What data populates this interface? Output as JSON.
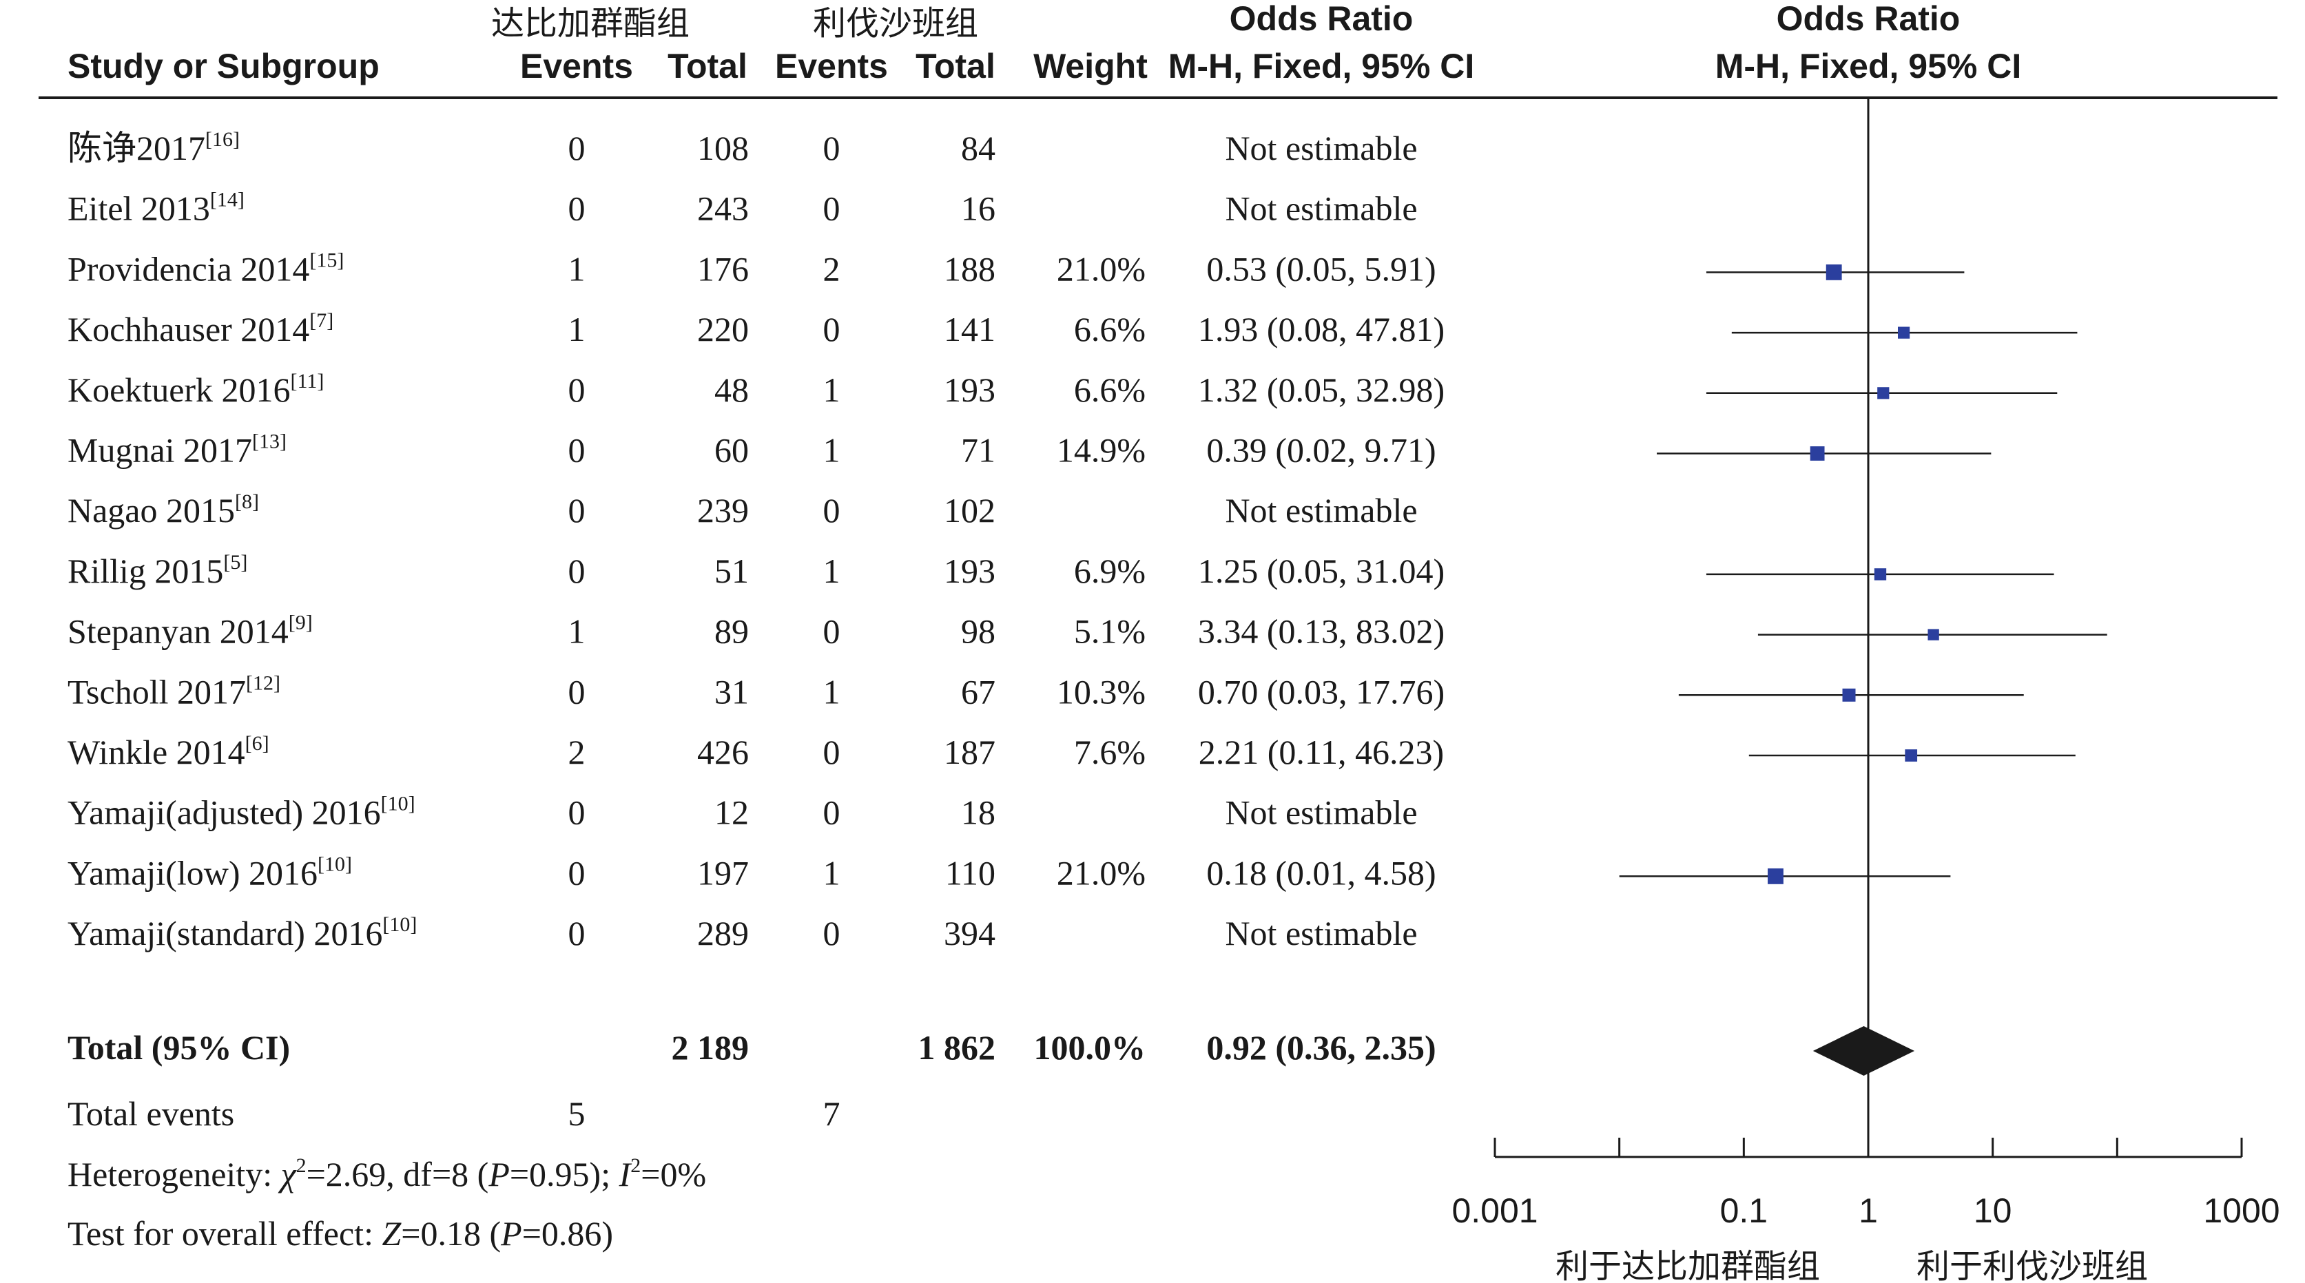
{
  "header": {
    "group1_name": "达比加群酯组",
    "group2_name": "利伐沙班组",
    "study_col": "Study or Subgroup",
    "events": "Events",
    "total": "Total",
    "weight": "Weight",
    "or_title": "Odds Ratio",
    "or_method": "M-H, Fixed, 95% CI",
    "plot_title": "Odds Ratio",
    "plot_method": "M-H, Fixed, 95% CI"
  },
  "chart_data": {
    "type": "forest",
    "x_scale": "log",
    "xlim": [
      0.001,
      1000
    ],
    "x_ticks": [
      "0.001",
      "0.1",
      "1",
      "10",
      "1000"
    ],
    "x_tick_values": [
      0.001,
      0.1,
      1,
      10,
      1000
    ],
    "favors_left": "利于达比加群酯组",
    "favors_right": "利于利伐沙班组",
    "studies": [
      {
        "name": "陈诤2017",
        "ref": "[16]",
        "events1": "0",
        "total1": "108",
        "events2": "0",
        "total2": "84",
        "weight": "",
        "or_text": "Not estimable",
        "or": null,
        "lo": null,
        "hi": null
      },
      {
        "name": "Eitel 2013",
        "ref": "[14]",
        "events1": "0",
        "total1": "243",
        "events2": "0",
        "total2": "16",
        "weight": "",
        "or_text": "Not estimable",
        "or": null,
        "lo": null,
        "hi": null
      },
      {
        "name": "Providencia 2014",
        "ref": "[15]",
        "events1": "1",
        "total1": "176",
        "events2": "2",
        "total2": "188",
        "weight": "21.0%",
        "or_text": "0.53 (0.05, 5.91)",
        "or": 0.53,
        "lo": 0.05,
        "hi": 5.91
      },
      {
        "name": "Kochhauser 2014",
        "ref": "[7]",
        "events1": "1",
        "total1": "220",
        "events2": "0",
        "total2": "141",
        "weight": "6.6%",
        "or_text": "1.93 (0.08, 47.81)",
        "or": 1.93,
        "lo": 0.08,
        "hi": 47.81
      },
      {
        "name": "Koektuerk 2016",
        "ref": "[11]",
        "events1": "0",
        "total1": "48",
        "events2": "1",
        "total2": "193",
        "weight": "6.6%",
        "or_text": "1.32 (0.05, 32.98)",
        "or": 1.32,
        "lo": 0.05,
        "hi": 32.98
      },
      {
        "name": "Mugnai 2017",
        "ref": "[13]",
        "events1": "0",
        "total1": "60",
        "events2": "1",
        "total2": "71",
        "weight": "14.9%",
        "or_text": "0.39 (0.02, 9.71)",
        "or": 0.39,
        "lo": 0.02,
        "hi": 9.71
      },
      {
        "name": "Nagao 2015",
        "ref": "[8]",
        "events1": "0",
        "total1": "239",
        "events2": "0",
        "total2": "102",
        "weight": "",
        "or_text": "Not estimable",
        "or": null,
        "lo": null,
        "hi": null
      },
      {
        "name": "Rillig 2015",
        "ref": "[5]",
        "events1": "0",
        "total1": "51",
        "events2": "1",
        "total2": "193",
        "weight": "6.9%",
        "or_text": "1.25 (0.05, 31.04)",
        "or": 1.25,
        "lo": 0.05,
        "hi": 31.04
      },
      {
        "name": "Stepanyan 2014",
        "ref": "[9]",
        "events1": "1",
        "total1": "89",
        "events2": "0",
        "total2": "98",
        "weight": "5.1%",
        "or_text": "3.34 (0.13, 83.02)",
        "or": 3.34,
        "lo": 0.13,
        "hi": 83.02
      },
      {
        "name": "Tscholl 2017",
        "ref": "[12]",
        "events1": "0",
        "total1": "31",
        "events2": "1",
        "total2": "67",
        "weight": "10.3%",
        "or_text": "0.70 (0.03, 17.76)",
        "or": 0.7,
        "lo": 0.03,
        "hi": 17.76
      },
      {
        "name": "Winkle 2014",
        "ref": "[6]",
        "events1": "2",
        "total1": "426",
        "events2": "0",
        "total2": "187",
        "weight": "7.6%",
        "or_text": "2.21 (0.11, 46.23)",
        "or": 2.21,
        "lo": 0.11,
        "hi": 46.23
      },
      {
        "name": "Yamaji(adjusted) 2016",
        "ref": "[10]",
        "events1": "0",
        "total1": "12",
        "events2": "0",
        "total2": "18",
        "weight": "",
        "or_text": "Not estimable",
        "or": null,
        "lo": null,
        "hi": null
      },
      {
        "name": "Yamaji(low) 2016",
        "ref": "[10]",
        "events1": "0",
        "total1": "197",
        "events2": "1",
        "total2": "110",
        "weight": "21.0%",
        "or_text": "0.18 (0.01, 4.58)",
        "or": 0.18,
        "lo": 0.01,
        "hi": 4.58
      },
      {
        "name": "Yamaji(standard) 2016",
        "ref": "[10]",
        "events1": "0",
        "total1": "289",
        "events2": "0",
        "total2": "394",
        "weight": "",
        "or_text": "Not estimable",
        "or": null,
        "lo": null,
        "hi": null
      }
    ],
    "total": {
      "label": "Total (95% CI)",
      "total1": "2 189",
      "total2": "1 862",
      "weight": "100.0%",
      "or_text": "0.92 (0.36, 2.35)",
      "or": 0.92,
      "lo": 0.36,
      "hi": 2.35
    },
    "total_events": {
      "label": "Total events",
      "events1": "5",
      "events2": "7"
    },
    "heterogeneity": {
      "prefix": "Heterogeneity: ",
      "chi_symbol": "χ",
      "chi_value": "=2.69, df=8 (",
      "p_symbol": "P",
      "p_value": "=0.95); ",
      "i_symbol": "I",
      "i_value": "=0%"
    },
    "overall_effect": {
      "prefix": "Test for overall effect: ",
      "z_symbol": "Z",
      "z_value": "=0.18 (",
      "p_symbol": "P",
      "p_value": "=0.86)"
    }
  }
}
